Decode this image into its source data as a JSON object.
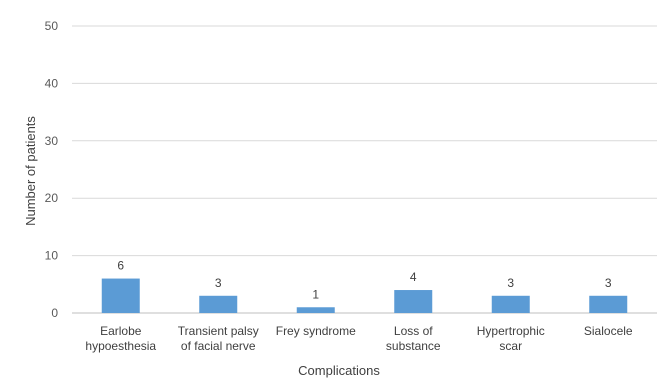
{
  "chart_data": {
    "type": "bar",
    "categories": [
      [
        "Earlobe",
        "hypoesthesia"
      ],
      [
        "Transient palsy",
        "of facial nerve"
      ],
      [
        "Frey syndrome"
      ],
      [
        "Loss of",
        "substance"
      ],
      [
        "Hypertrophic",
        "scar"
      ],
      [
        "Sialocele"
      ]
    ],
    "values": [
      6,
      3,
      1,
      4,
      3,
      3
    ],
    "data_labels": [
      "6",
      "3",
      "1",
      "4",
      "3",
      "3"
    ],
    "xlabel": "Complications",
    "ylabel": "Number of patients",
    "ylim": [
      0,
      50
    ],
    "yticks": [
      0,
      10,
      20,
      30,
      40,
      50
    ],
    "ytick_labels": [
      "0",
      "10",
      "20",
      "30",
      "40",
      "50"
    ],
    "grid": true,
    "bar_color": "#5b9bd5",
    "grid_color": "#d9d9d9"
  }
}
